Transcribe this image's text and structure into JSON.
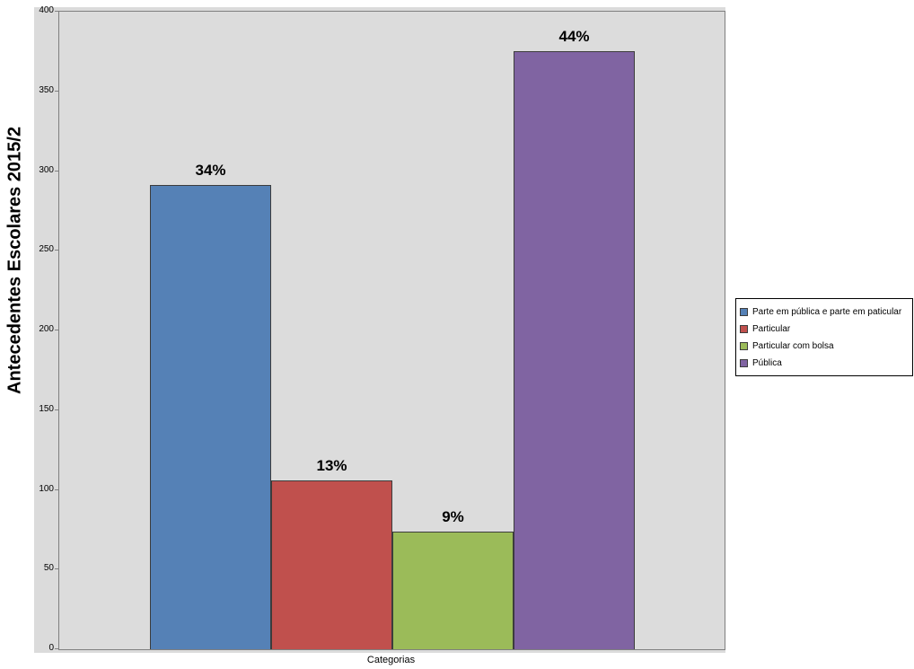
{
  "chart_data": {
    "type": "bar",
    "title": "",
    "y_axis_title": "Antecedentes Escolares 2015/2",
    "xlabel": "Categorias",
    "ylim": [
      0,
      400
    ],
    "yticks": [
      400,
      350,
      300,
      250,
      200,
      150,
      100,
      50,
      0
    ],
    "grid": false,
    "legend_position": "right",
    "plot_background": "#dcdcdc",
    "series": [
      {
        "name": "Parte em pública e parte em paticular",
        "value": 291,
        "label": "34%",
        "color": "#5581b6"
      },
      {
        "name": "Particular",
        "value": 106,
        "label": "13%",
        "color": "#c0504d"
      },
      {
        "name": "Particular com bolsa",
        "value": 74,
        "label": "9%",
        "color": "#9bbb59"
      },
      {
        "name": "Pública",
        "value": 375,
        "label": "44%",
        "color": "#8064a2"
      }
    ]
  }
}
